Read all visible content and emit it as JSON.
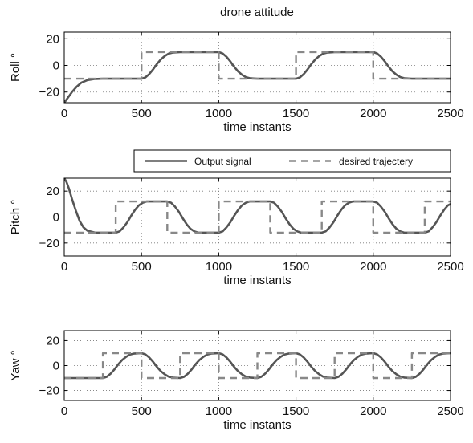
{
  "chart_data": [
    {
      "type": "line",
      "title": "drone attitude",
      "xlabel": "time instants",
      "ylabel": "Roll °",
      "xlim": [
        0,
        2500
      ],
      "ylim": [
        -28,
        25
      ],
      "xticks": [
        0,
        500,
        1000,
        1500,
        2000,
        2500
      ],
      "yticks": [
        20,
        0,
        -20
      ],
      "grid": true,
      "series": [
        {
          "name": "Output signal",
          "style": "solid",
          "color": "#555555",
          "x": [
            0,
            25,
            50,
            80,
            110,
            150,
            200,
            250,
            300,
            350,
            400,
            450,
            500,
            525,
            550,
            575,
            600,
            625,
            650,
            675,
            700,
            750,
            800,
            850,
            900,
            950,
            1000,
            1025,
            1050,
            1075,
            1100,
            1125,
            1150,
            1175,
            1200,
            1250,
            1300,
            1350,
            1400,
            1450,
            1500,
            1525,
            1550,
            1575,
            1600,
            1625,
            1650,
            1675,
            1700,
            1750,
            1800,
            1850,
            1900,
            1950,
            2000,
            2025,
            2050,
            2075,
            2100,
            2125,
            2150,
            2175,
            2200,
            2250,
            2300,
            2350,
            2400,
            2450,
            2500
          ],
          "values": [
            -28,
            -24,
            -20,
            -16,
            -13,
            -11,
            -10.2,
            -10,
            -10,
            -10,
            -10,
            -10,
            -10,
            -9,
            -6.5,
            -3,
            1,
            4.5,
            7,
            8.8,
            9.6,
            10,
            10,
            10,
            10,
            10,
            10,
            9,
            6.5,
            3,
            -1,
            -4.5,
            -7,
            -8.8,
            -9.6,
            -10,
            -10,
            -10,
            -10,
            -10,
            -10,
            -9,
            -6.5,
            -3,
            1,
            4.5,
            7,
            8.8,
            9.6,
            10,
            10,
            10,
            10,
            10,
            10,
            9,
            6.5,
            3,
            -1,
            -4.5,
            -7,
            -8.8,
            -9.6,
            -10,
            -10,
            -10,
            -10,
            -10,
            -10
          ]
        },
        {
          "name": "desired trajectery",
          "style": "dashed",
          "color": "#888888",
          "x": [
            0,
            500,
            500,
            1000,
            1000,
            1500,
            1500,
            2000,
            2000,
            2500
          ],
          "values": [
            -10,
            -10,
            10,
            10,
            -10,
            -10,
            10,
            10,
            -10,
            -10
          ]
        }
      ]
    },
    {
      "type": "line",
      "xlabel": "time instants",
      "ylabel": "Pitch °",
      "xlim": [
        0,
        2500
      ],
      "ylim": [
        -30,
        30
      ],
      "xticks": [
        0,
        500,
        1000,
        1500,
        2000,
        2500
      ],
      "yticks": [
        20,
        0,
        -20
      ],
      "grid": true,
      "series": [
        {
          "name": "Output signal",
          "style": "solid",
          "color": "#555555",
          "x": [
            0,
            15,
            30,
            50,
            75,
            100,
            125,
            150,
            200,
            250,
            300,
            333,
            358,
            383,
            408,
            433,
            458,
            483,
            508,
            533,
            583,
            633,
            667,
            692,
            717,
            742,
            767,
            792,
            817,
            842,
            867,
            917,
            967,
            1000,
            1025,
            1050,
            1075,
            1100,
            1125,
            1150,
            1175,
            1200,
            1250,
            1300,
            1333,
            1358,
            1383,
            1408,
            1433,
            1458,
            1483,
            1508,
            1533,
            1583,
            1633,
            1667,
            1692,
            1717,
            1742,
            1767,
            1792,
            1817,
            1842,
            1867,
            1917,
            1967,
            2000,
            2025,
            2050,
            2075,
            2100,
            2125,
            2150,
            2175,
            2200,
            2250,
            2300,
            2333,
            2358,
            2383,
            2408,
            2433,
            2458,
            2483,
            2500
          ],
          "values": [
            30,
            27,
            22,
            14,
            5,
            -3,
            -8,
            -10.5,
            -12,
            -12,
            -12,
            -12,
            -11,
            -8,
            -4,
            1,
            5.5,
            9,
            11,
            12,
            12,
            12,
            12,
            11,
            8,
            4,
            -1,
            -5.5,
            -9,
            -11,
            -12,
            -12,
            -12,
            -12,
            -11,
            -8,
            -4,
            1,
            5.5,
            9,
            11,
            12,
            12,
            12,
            12,
            11,
            8,
            4,
            -1,
            -5.5,
            -9,
            -11,
            -12,
            -12,
            -12,
            -12,
            -11,
            -8,
            -4,
            1,
            5.5,
            9,
            11,
            12,
            12,
            12,
            12,
            11,
            8,
            4,
            -1,
            -5.5,
            -9,
            -11,
            -12,
            -12,
            -12,
            -12,
            -11,
            -8,
            -4,
            1,
            5.5,
            9,
            10
          ]
        },
        {
          "name": "desired trajectery",
          "style": "dashed",
          "color": "#888888",
          "x": [
            0,
            333,
            333,
            667,
            667,
            1000,
            1000,
            1333,
            1333,
            1667,
            1667,
            2000,
            2000,
            2333,
            2333,
            2500
          ],
          "values": [
            -12,
            -12,
            12,
            12,
            -12,
            -12,
            12,
            12,
            -12,
            -12,
            12,
            12,
            -12,
            -12,
            12,
            12
          ]
        }
      ]
    },
    {
      "type": "line",
      "xlabel": "time instants",
      "ylabel": "Yaw °",
      "xlim": [
        0,
        2500
      ],
      "ylim": [
        -28,
        28
      ],
      "xticks": [
        0,
        500,
        1000,
        1500,
        2000,
        2500
      ],
      "yticks": [
        20,
        0,
        -20
      ],
      "grid": true,
      "series": [
        {
          "name": "Output signal",
          "style": "solid",
          "color": "#555555",
          "x": [
            0,
            50,
            100,
            150,
            200,
            250,
            275,
            300,
            325,
            350,
            375,
            400,
            425,
            450,
            500,
            525,
            550,
            575,
            600,
            625,
            650,
            675,
            700,
            750,
            775,
            800,
            825,
            850,
            875,
            900,
            925,
            950,
            1000,
            1025,
            1050,
            1075,
            1100,
            1125,
            1150,
            1175,
            1200,
            1250,
            1275,
            1300,
            1325,
            1350,
            1375,
            1400,
            1425,
            1450,
            1500,
            1525,
            1550,
            1575,
            1600,
            1625,
            1650,
            1675,
            1700,
            1750,
            1775,
            1800,
            1825,
            1850,
            1875,
            1900,
            1925,
            1950,
            2000,
            2025,
            2050,
            2075,
            2100,
            2125,
            2150,
            2175,
            2200,
            2250,
            2275,
            2300,
            2325,
            2350,
            2375,
            2400,
            2425,
            2450,
            2500
          ],
          "values": [
            -10,
            -10,
            -10,
            -10,
            -10,
            -10,
            -9,
            -6.5,
            -3,
            1,
            4.5,
            7,
            8.8,
            9.6,
            10,
            9,
            6.5,
            3,
            -1,
            -4.5,
            -7,
            -8.8,
            -9.6,
            -10,
            -9,
            -6.5,
            -3,
            1,
            4.5,
            7,
            8.8,
            9.6,
            10,
            9,
            6.5,
            3,
            -1,
            -4.5,
            -7,
            -8.8,
            -9.6,
            -10,
            -9,
            -6.5,
            -3,
            1,
            4.5,
            7,
            8.8,
            9.6,
            10,
            9,
            6.5,
            3,
            -1,
            -4.5,
            -7,
            -8.8,
            -9.6,
            -10,
            -9,
            -6.5,
            -3,
            1,
            4.5,
            7,
            8.8,
            9.6,
            10,
            9,
            6.5,
            3,
            -1,
            -4.5,
            -7,
            -8.8,
            -9.6,
            -10,
            -9,
            -6.5,
            -3,
            1,
            4.5,
            7,
            8.8,
            9.6,
            10
          ]
        },
        {
          "name": "desired trajectery",
          "style": "dashed",
          "color": "#888888",
          "x": [
            0,
            250,
            250,
            500,
            500,
            750,
            750,
            1000,
            1000,
            1250,
            1250,
            1500,
            1500,
            1750,
            1750,
            2000,
            2000,
            2250,
            2250,
            2500
          ],
          "values": [
            -10,
            -10,
            10,
            10,
            -10,
            -10,
            10,
            10,
            -10,
            -10,
            10,
            10,
            -10,
            -10,
            10,
            10,
            -10,
            -10,
            10,
            10
          ]
        }
      ]
    }
  ],
  "legend": {
    "placement": "between-top-and-middle",
    "entries": [
      "Output signal",
      "desired trajectery"
    ]
  }
}
